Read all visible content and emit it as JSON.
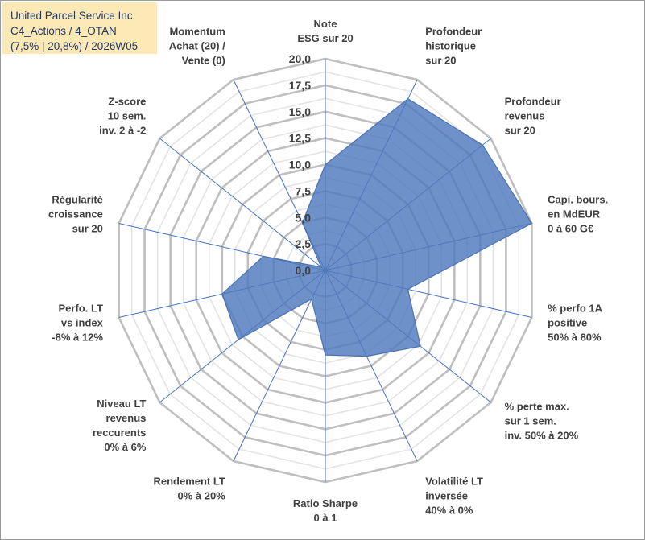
{
  "title": {
    "company": "United Parcel Service Inc",
    "category": "C4_Actions / 4_OTAN",
    "detail": "(7,5% | 20,8%) / 2026W05"
  },
  "chart_data": {
    "type": "radar",
    "rmin": 0,
    "rmax": 20,
    "ticks": [
      "0,0",
      "2,5",
      "5,0",
      "7,5",
      "10,0",
      "12,5",
      "15,0",
      "17,5",
      "20,0"
    ],
    "axes": [
      {
        "label": [
          "Note",
          "ESG sur 20"
        ],
        "value": 10.0
      },
      {
        "label": [
          "Profondeur",
          "historique",
          "sur 20"
        ],
        "value": 18.0
      },
      {
        "label": [
          "Profondeur",
          "revenus",
          "sur 20"
        ],
        "value": 19.0
      },
      {
        "label": [
          "Capi. bours.",
          "en MdEUR",
          "0 à 60 G€"
        ],
        "value": 20.0
      },
      {
        "label": [
          "% perfo 1A",
          "positive",
          "50% à 80%"
        ],
        "value": 8.0
      },
      {
        "label": [
          "% perte max.",
          "sur 1 sem.",
          "inv. 50% à 20%"
        ],
        "value": 11.5
      },
      {
        "label": [
          "Volatilité LT",
          "inversée",
          "40% à 0%"
        ],
        "value": 9.0
      },
      {
        "label": [
          "Ratio Sharpe",
          "0 à 1"
        ],
        "value": 8.0
      },
      {
        "label": [
          "Rendement LT",
          "0% à 20%"
        ],
        "value": 3.0
      },
      {
        "label": [
          "Niveau LT",
          "revenus",
          "reccurents",
          "0% à 6%"
        ],
        "value": 10.5
      },
      {
        "label": [
          "Perfo. LT",
          "vs index",
          "-8% à 12%"
        ],
        "value": 10.0
      },
      {
        "label": [
          "Régularité",
          "croissance",
          "sur 20"
        ],
        "value": 6.0
      },
      {
        "label": [
          "Z-score",
          "10 sem.",
          "inv. 2 à -2"
        ],
        "value": 0.5
      },
      {
        "label": [
          "Momentum",
          "Achat (20) /",
          "Vente (0)"
        ],
        "value": 5.0
      }
    ]
  }
}
